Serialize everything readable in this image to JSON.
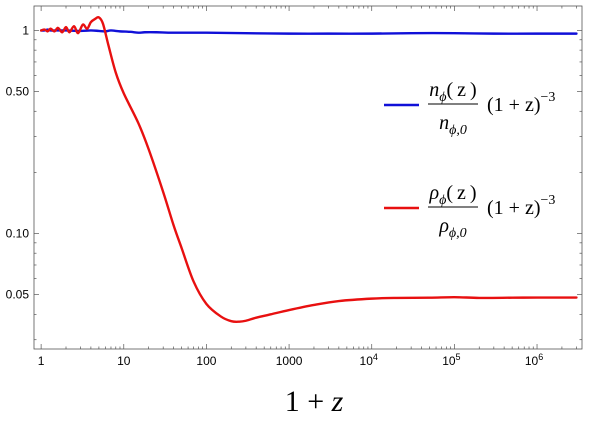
{
  "chart_data": {
    "type": "line",
    "xlabel": "1 + z",
    "x_scale": "log",
    "y_scale": "log",
    "xlim": [
      0.82,
      3500000.0
    ],
    "ylim": [
      0.027,
      1.32
    ],
    "x_ticks": [
      {
        "value": 1,
        "label": "1"
      },
      {
        "value": 10,
        "label": "10"
      },
      {
        "value": 100,
        "label": "100"
      },
      {
        "value": 1000,
        "label": "1000"
      },
      {
        "value": 10000,
        "base": "10",
        "exp": "4"
      },
      {
        "value": 100000,
        "base": "10",
        "exp": "5"
      },
      {
        "value": 1000000,
        "base": "10",
        "exp": "6"
      }
    ],
    "y_ticks": [
      {
        "value": 1,
        "label": "1"
      },
      {
        "value": 0.5,
        "label": "0.50"
      },
      {
        "value": 0.1,
        "label": "0.10"
      },
      {
        "value": 0.05,
        "label": "0.05"
      }
    ],
    "legend_placement": "right",
    "series": [
      {
        "color": "#1010d8",
        "legend": {
          "numerator": "n_ϕ(z)",
          "denominator": "n_ϕ,0",
          "factor": "(1 + z)^−3"
        },
        "points": [
          [
            1,
            1.0
          ],
          [
            1.1,
            1.0
          ],
          [
            1.2,
            1.01
          ],
          [
            1.3,
            1.0
          ],
          [
            1.5,
            1.0
          ],
          [
            2,
            1.0
          ],
          [
            3,
            0.995
          ],
          [
            4,
            1.0
          ],
          [
            5,
            0.995
          ],
          [
            6,
            0.99
          ],
          [
            7,
            1.0
          ],
          [
            9,
            0.99
          ],
          [
            12,
            0.985
          ],
          [
            15,
            0.975
          ],
          [
            18,
            0.98
          ],
          [
            25,
            0.98
          ],
          [
            40,
            0.975
          ],
          [
            100,
            0.975
          ],
          [
            300,
            0.97
          ],
          [
            1000,
            0.965
          ],
          [
            3000,
            0.965
          ],
          [
            10000,
            0.965
          ],
          [
            30000,
            0.97
          ],
          [
            100000,
            0.97
          ],
          [
            300000,
            0.965
          ],
          [
            1000000,
            0.965
          ],
          [
            3000000,
            0.965
          ]
        ]
      },
      {
        "color": "#e81010",
        "legend": {
          "numerator": "ρ_ϕ(z)",
          "denominator": "ρ_ϕ,0",
          "factor": "(1 + z)^−3"
        },
        "points": [
          [
            1,
            1.0
          ],
          [
            1.1,
            1.01
          ],
          [
            1.2,
            0.99
          ],
          [
            1.3,
            1.02
          ],
          [
            1.45,
            0.99
          ],
          [
            1.6,
            1.03
          ],
          [
            1.8,
            0.98
          ],
          [
            2.0,
            1.04
          ],
          [
            2.2,
            0.98
          ],
          [
            2.5,
            1.05
          ],
          [
            2.8,
            0.97
          ],
          [
            3.2,
            1.07
          ],
          [
            3.6,
            1.02
          ],
          [
            4.0,
            1.1
          ],
          [
            4.5,
            1.14
          ],
          [
            5.0,
            1.16
          ],
          [
            5.6,
            1.08
          ],
          [
            6.5,
            0.85
          ],
          [
            8,
            0.62
          ],
          [
            10,
            0.49
          ],
          [
            15,
            0.35
          ],
          [
            20,
            0.26
          ],
          [
            30,
            0.16
          ],
          [
            40,
            0.11
          ],
          [
            50,
            0.085
          ],
          [
            70,
            0.058
          ],
          [
            100,
            0.045
          ],
          [
            150,
            0.039
          ],
          [
            200,
            0.037
          ],
          [
            250,
            0.0368
          ],
          [
            300,
            0.0372
          ],
          [
            400,
            0.0385
          ],
          [
            600,
            0.04
          ],
          [
            1000,
            0.042
          ],
          [
            2000,
            0.0445
          ],
          [
            4000,
            0.0465
          ],
          [
            10000,
            0.0478
          ],
          [
            20000,
            0.0482
          ],
          [
            50000,
            0.0483
          ],
          [
            100000,
            0.0486
          ],
          [
            200000,
            0.0482
          ],
          [
            500000,
            0.0483
          ],
          [
            1000000,
            0.0484
          ],
          [
            3000000,
            0.0484
          ]
        ]
      }
    ]
  }
}
